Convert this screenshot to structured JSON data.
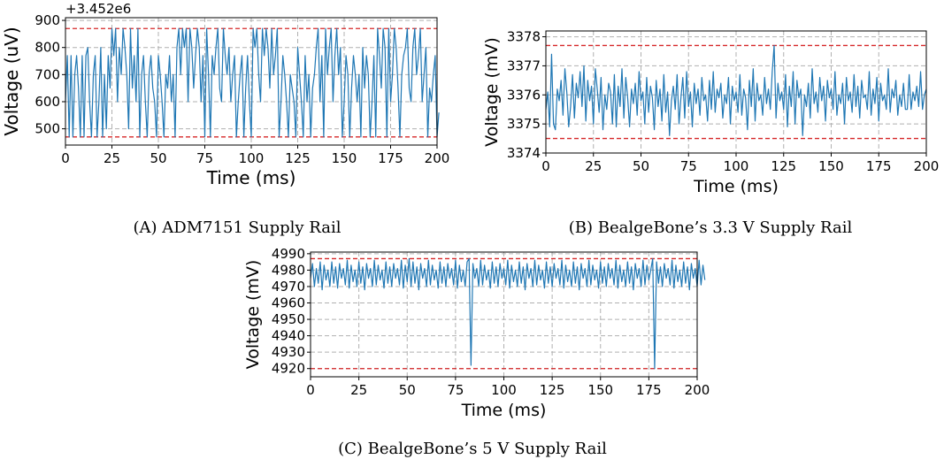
{
  "captions": {
    "a": "(A) ADM7151 Supply Rail",
    "b": "(B) BealgeBone’s 3.3 V Supply Rail",
    "c": "(C) BealgeBone’s 5 V Supply Rail"
  },
  "chart_data": [
    {
      "id": "a",
      "type": "line",
      "xlabel": "Time (ms)",
      "ylabel": "Voltage (uV)",
      "offset_text": "+3.452e6",
      "xlim": [
        0,
        200
      ],
      "ylim": [
        440,
        910
      ],
      "xticks": [
        0,
        25,
        50,
        75,
        100,
        125,
        150,
        175,
        200
      ],
      "yticks": [
        500,
        600,
        700,
        800,
        900
      ],
      "grid": true,
      "colors": {
        "series": "#1f77b4",
        "limit": "#d62728",
        "grid": "#b0b0b0"
      },
      "limit_lines": [
        870,
        470
      ],
      "series": [
        {
          "x_start": 0,
          "x_step": 1,
          "values": [
            600,
            770,
            470,
            770,
            470,
            700,
            770,
            650,
            470,
            770,
            470,
            770,
            800,
            600,
            470,
            700,
            770,
            470,
            600,
            800,
            470,
            700,
            500,
            770,
            650,
            870,
            770,
            870,
            600,
            800,
            700,
            870,
            800,
            700,
            500,
            870,
            650,
            770,
            600,
            870,
            470,
            700,
            770,
            600,
            470,
            700,
            770,
            650,
            600,
            470,
            770,
            700,
            600,
            470,
            700,
            650,
            770,
            600,
            700,
            470,
            800,
            870,
            700,
            870,
            800,
            870,
            600,
            870,
            800,
            650,
            770,
            870,
            800,
            600,
            770,
            470,
            870,
            700,
            470,
            770,
            700,
            800,
            870,
            650,
            600,
            870,
            770,
            700,
            800,
            600,
            700,
            770,
            470,
            600,
            700,
            770,
            470,
            650,
            770,
            600,
            470,
            870,
            800,
            870,
            700,
            600,
            870,
            770,
            870,
            800,
            650,
            870,
            700,
            770,
            870,
            470,
            600,
            770,
            700,
            600,
            470,
            700,
            650,
            600,
            470,
            800,
            700,
            600,
            470,
            770,
            600,
            700,
            470,
            650,
            700,
            800,
            870,
            600,
            770,
            470,
            870,
            700,
            800,
            870,
            600,
            770,
            870,
            700,
            800,
            470,
            600,
            770,
            700,
            470,
            650,
            770,
            700,
            600,
            700,
            470,
            800,
            650,
            770,
            700,
            470,
            600,
            770,
            470,
            870,
            770,
            650,
            870,
            800,
            470,
            870,
            600,
            700,
            870,
            800,
            650,
            470,
            700,
            770,
            800,
            870,
            650,
            600,
            800,
            870,
            700,
            770,
            870,
            600,
            700,
            800,
            470,
            650,
            600,
            700,
            770,
            470,
            560
          ]
        }
      ]
    },
    {
      "id": "b",
      "type": "line",
      "xlabel": "Time (ms)",
      "ylabel": "Voltage (mV)",
      "xlim": [
        0,
        200
      ],
      "ylim": [
        3374,
        3378.2
      ],
      "xticks": [
        0,
        25,
        50,
        75,
        100,
        125,
        150,
        175,
        200
      ],
      "yticks": [
        3374,
        3375,
        3376,
        3377,
        3378
      ],
      "grid": true,
      "colors": {
        "series": "#1f77b4",
        "limit": "#d62728",
        "grid": "#b0b0b0"
      },
      "limit_lines": [
        3377.7,
        3374.5
      ],
      "series": [
        {
          "x_start": 0,
          "x_step": 1,
          "values": [
            3375.5,
            3376.1,
            3374.9,
            3377.4,
            3375.0,
            3374.8,
            3376.2,
            3375.8,
            3376.5,
            3375.3,
            3376.9,
            3376.1,
            3374.9,
            3375.6,
            3376.7,
            3375.2,
            3376.4,
            3375.9,
            3376.8,
            3375.6,
            3377.0,
            3375.1,
            3376.5,
            3375.8,
            3376.3,
            3375.0,
            3376.9,
            3376.2,
            3375.4,
            3376.6,
            3374.8,
            3376.0,
            3375.5,
            3376.4,
            3376.1,
            3375.0,
            3376.7,
            3374.9,
            3376.3,
            3375.6,
            3376.9,
            3375.2,
            3376.6,
            3375.9,
            3374.9,
            3376.2,
            3375.7,
            3376.4,
            3375.3,
            3376.8,
            3375.8,
            3376.1,
            3375.0,
            3376.6,
            3375.4,
            3376.3,
            3375.9,
            3374.8,
            3376.5,
            3375.6,
            3376.2,
            3375.1,
            3376.7,
            3375.4,
            3376.1,
            3374.6,
            3375.8,
            3376.3,
            3375.5,
            3376.7,
            3375.0,
            3375.9,
            3376.6,
            3375.2,
            3376.8,
            3375.6,
            3376.1,
            3374.9,
            3376.4,
            3375.7,
            3376.2,
            3375.3,
            3376.6,
            3375.8,
            3376.0,
            3375.1,
            3376.5,
            3375.5,
            3376.8,
            3375.4,
            3376.2,
            3375.9,
            3376.4,
            3375.2,
            3376.0,
            3375.7,
            3376.6,
            3375.0,
            3376.3,
            3375.8,
            3376.1,
            3375.4,
            3376.7,
            3375.3,
            3376.2,
            3375.9,
            3374.8,
            3376.5,
            3375.6,
            3376.9,
            3375.1,
            3376.4,
            3375.8,
            3376.0,
            3375.3,
            3376.6,
            3375.7,
            3376.2,
            3375.5,
            3376.8,
            3377.7,
            3375.2,
            3376.4,
            3375.8,
            3376.1,
            3375.5,
            3376.7,
            3374.9,
            3376.3,
            3375.6,
            3376.8,
            3375.0,
            3376.5,
            3375.9,
            3376.2,
            3374.6,
            3376.0,
            3375.6,
            3376.4,
            3375.2,
            3376.9,
            3375.7,
            3376.1,
            3375.4,
            3376.6,
            3375.8,
            3376.3,
            3375.1,
            3376.5,
            3375.9,
            3376.2,
            3375.5,
            3376.8,
            3375.3,
            3376.0,
            3375.7,
            3376.4,
            3375.0,
            3376.6,
            3375.8,
            3376.1,
            3375.4,
            3376.7,
            3375.6,
            3376.3,
            3375.2,
            3376.5,
            3375.9,
            3376.0,
            3375.5,
            3376.8,
            3375.3,
            3376.2,
            3375.7,
            3376.6,
            3375.1,
            3376.4,
            3375.8,
            3376.0,
            3375.5,
            3376.9,
            3375.4,
            3376.2,
            3375.9,
            3376.5,
            3375.3,
            3376.0,
            3375.6,
            3376.4,
            3375.5,
            3375.5,
            3376.7,
            3375.5,
            3376.1,
            3375.8,
            3376.3,
            3375.6,
            3376.8,
            3375.5,
            3376.0,
            3376.2
          ]
        }
      ]
    },
    {
      "id": "c",
      "type": "line",
      "xlabel": "Time (ms)",
      "ylabel": "Voltage (mV)",
      "xlim": [
        0,
        200
      ],
      "ylim": [
        4915,
        4991
      ],
      "xticks": [
        0,
        25,
        50,
        75,
        100,
        125,
        150,
        175,
        200
      ],
      "yticks": [
        4920,
        4930,
        4940,
        4950,
        4960,
        4970,
        4980,
        4990
      ],
      "grid": true,
      "colors": {
        "series": "#1f77b4",
        "limit": "#d62728",
        "grid": "#b0b0b0"
      },
      "limit_lines": [
        4987,
        4920
      ],
      "series": [
        {
          "x_start": 0,
          "x_step": 1,
          "values": [
            4975,
            4984,
            4970,
            4981,
            4972,
            4985,
            4968,
            4983,
            4974,
            4980,
            4970,
            4985,
            4972,
            4982,
            4969,
            4984,
            4975,
            4981,
            4971,
            4986,
            4969,
            4983,
            4973,
            4980,
            4970,
            4985,
            4972,
            4982,
            4968,
            4984,
            4975,
            4981,
            4970,
            4986,
            4971,
            4983,
            4974,
            4980,
            4969,
            4985,
            4972,
            4982,
            4970,
            4984,
            4975,
            4981,
            4971,
            4986,
            4969,
            4983,
            4973,
            4987,
            4970,
            4985,
            4972,
            4982,
            4968,
            4984,
            4975,
            4981,
            4970,
            4986,
            4971,
            4983,
            4974,
            4980,
            4969,
            4985,
            4972,
            4982,
            4970,
            4984,
            4975,
            4981,
            4971,
            4986,
            4969,
            4983,
            4973,
            4980,
            4970,
            4985,
            4987,
            4922,
            4984,
            4975,
            4981,
            4970,
            4986,
            4971,
            4983,
            4974,
            4980,
            4969,
            4985,
            4972,
            4982,
            4970,
            4984,
            4975,
            4981,
            4971,
            4986,
            4969,
            4983,
            4973,
            4980,
            4970,
            4985,
            4972,
            4982,
            4968,
            4984,
            4975,
            4981,
            4970,
            4986,
            4971,
            4983,
            4974,
            4980,
            4969,
            4985,
            4972,
            4982,
            4970,
            4984,
            4975,
            4981,
            4971,
            4986,
            4969,
            4983,
            4973,
            4980,
            4970,
            4985,
            4972,
            4982,
            4968,
            4984,
            4975,
            4981,
            4970,
            4986,
            4971,
            4983,
            4974,
            4980,
            4969,
            4985,
            4972,
            4982,
            4970,
            4984,
            4975,
            4981,
            4971,
            4986,
            4969,
            4983,
            4973,
            4980,
            4970,
            4985,
            4972,
            4982,
            4968,
            4984,
            4975,
            4981,
            4970,
            4986,
            4971,
            4983,
            4974,
            4980,
            4987,
            4920,
            4985,
            4972,
            4982,
            4970,
            4984,
            4975,
            4981,
            4971,
            4986,
            4969,
            4983,
            4973,
            4980,
            4970,
            4985,
            4972,
            4982,
            4968,
            4984,
            4975,
            4981,
            4970,
            4986,
            4971,
            4983,
            4974
          ]
        }
      ]
    }
  ]
}
